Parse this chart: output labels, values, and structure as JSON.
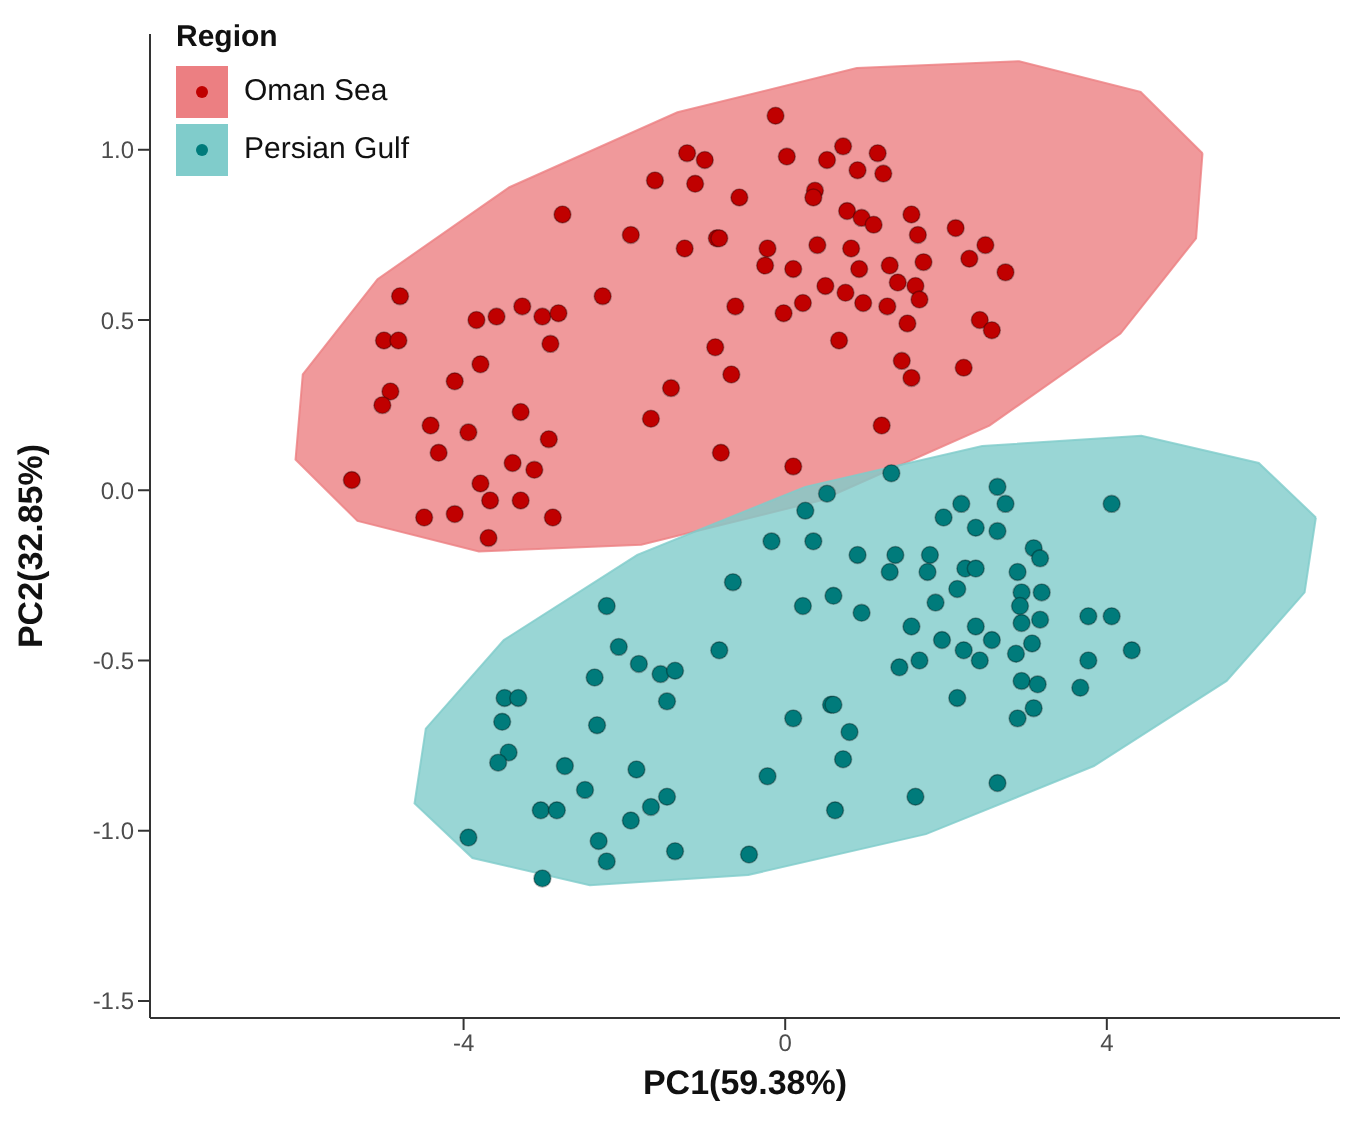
{
  "chart_data": {
    "type": "scatter",
    "xlabel": "PC1(59.38%)",
    "ylabel": "PC2(32.85%)",
    "legend_title": "Region",
    "legend": "top left",
    "grid": false,
    "xlim": [
      -7.9,
      6.9
    ],
    "xticks": [
      -4,
      0,
      4
    ],
    "ylim": [
      -1.55,
      1.34
    ],
    "yticks": [
      {
        "value": -1.5,
        "label": "-1.5"
      },
      {
        "value": -1,
        "label": "-1.0"
      },
      -0.5,
      {
        "value": 0,
        "label": "0.0"
      },
      0.5,
      {
        "value": 1,
        "label": "1.0"
      }
    ],
    "series": [
      {
        "type": "area",
        "color": "#ec7f82",
        "x": [
          5.19,
          5.11,
          4.17,
          2.54,
          0.44,
          -1.79,
          -3.81,
          -5.32,
          -6.09,
          -6.0,
          -5.07,
          -3.43,
          -1.34,
          0.89,
          2.91,
          4.42,
          5.19
        ],
        "values": [
          0.99,
          0.74,
          0.46,
          0.19,
          -0.03,
          -0.16,
          -0.18,
          -0.09,
          0.09,
          0.34,
          0.62,
          0.89,
          1.11,
          1.24,
          1.26,
          1.17,
          0.99
        ]
      },
      {
        "type": "area",
        "color": "#80cccb",
        "x": [
          6.6,
          6.46,
          5.49,
          3.84,
          1.75,
          -0.46,
          -2.43,
          -3.89,
          -4.61,
          -4.47,
          -3.5,
          -1.84,
          0.25,
          2.45,
          4.43,
          5.89,
          6.6
        ],
        "values": [
          -0.08,
          -0.3,
          -0.56,
          -0.81,
          -1.01,
          -1.13,
          -1.16,
          -1.08,
          -0.92,
          -0.7,
          -0.44,
          -0.19,
          0.01,
          0.13,
          0.16,
          0.08,
          -0.08
        ]
      },
      {
        "name": "Oman Sea",
        "marker": "circle",
        "color": "#c00000",
        "x": [
          -1.22,
          -1.0,
          -1.62,
          -1.12,
          -2.77,
          -1.92,
          -1.25,
          -0.85,
          -4.79,
          -2.27,
          -3.84,
          -3.59,
          -3.27,
          -3.02,
          -2.82,
          -4.99,
          -4.81,
          -2.92,
          -0.87,
          -3.79,
          -4.11,
          -4.91,
          -5.01,
          -1.42,
          -3.29,
          -1.67,
          -4.41,
          -3.94,
          -2.94,
          -4.31,
          -3.39,
          -3.12,
          -5.39,
          -3.79,
          -3.67,
          -3.29,
          -4.49,
          -4.11,
          -2.89,
          -3.69,
          -0.12,
          -0.57,
          0.02,
          0.52,
          0.72,
          0.9,
          1.15,
          1.22,
          0.37,
          0.35,
          0.77,
          0.95,
          1.1,
          1.57,
          1.65,
          2.12,
          2.49,
          2.29,
          2.74,
          -0.82,
          -0.22,
          -0.25,
          0.4,
          0.82,
          0.1,
          0.92,
          1.3,
          1.72,
          1.4,
          1.62,
          1.67,
          0.5,
          0.75,
          0.97,
          1.27,
          0.22,
          -0.02,
          -0.62,
          1.52,
          2.42,
          2.57,
          0.67,
          -0.67,
          1.45,
          1.57,
          2.22,
          1.2,
          -0.8,
          0.1
        ],
        "values": [
          0.99,
          0.97,
          0.91,
          0.9,
          0.81,
          0.75,
          0.71,
          0.74,
          0.57,
          0.57,
          0.5,
          0.51,
          0.54,
          0.51,
          0.52,
          0.44,
          0.44,
          0.43,
          0.42,
          0.37,
          0.32,
          0.29,
          0.25,
          0.3,
          0.23,
          0.21,
          0.19,
          0.17,
          0.15,
          0.11,
          0.08,
          0.06,
          0.03,
          0.02,
          -0.03,
          -0.03,
          -0.08,
          -0.07,
          -0.08,
          -0.14,
          1.1,
          0.86,
          0.98,
          0.97,
          1.01,
          0.94,
          0.99,
          0.93,
          0.88,
          0.86,
          0.82,
          0.8,
          0.78,
          0.81,
          0.75,
          0.77,
          0.72,
          0.68,
          0.64,
          0.74,
          0.71,
          0.66,
          0.72,
          0.71,
          0.65,
          0.65,
          0.66,
          0.67,
          0.61,
          0.6,
          0.56,
          0.6,
          0.58,
          0.55,
          0.54,
          0.55,
          0.52,
          0.54,
          0.49,
          0.5,
          0.47,
          0.44,
          0.34,
          0.38,
          0.33,
          0.36,
          0.19,
          0.11,
          0.07
        ]
      },
      {
        "name": "Persian Gulf",
        "marker": "circle",
        "color": "#007b7b",
        "x": [
          0.52,
          0.25,
          -0.17,
          0.35,
          -0.65,
          0.22,
          0.6,
          -2.22,
          -2.07,
          -1.82,
          -1.55,
          -1.37,
          -0.82,
          -2.37,
          -1.47,
          -3.49,
          -3.32,
          -3.52,
          -2.34,
          0.1,
          0.57,
          -3.44,
          -3.57,
          -2.74,
          -1.85,
          -0.22,
          -2.49,
          -3.04,
          -2.84,
          -1.67,
          -1.47,
          -1.92,
          0.62,
          -3.94,
          -2.32,
          -2.22,
          -1.37,
          -0.45,
          -3.02,
          1.32,
          2.64,
          2.74,
          2.19,
          1.97,
          2.37,
          2.64,
          4.06,
          0.9,
          1.37,
          1.3,
          1.8,
          1.77,
          2.24,
          2.37,
          3.09,
          3.17,
          2.89,
          2.14,
          2.94,
          3.19,
          2.92,
          0.95,
          1.87,
          2.94,
          3.17,
          2.37,
          1.57,
          3.77,
          4.06,
          1.95,
          2.57,
          3.07,
          2.22,
          2.87,
          2.42,
          1.67,
          1.42,
          3.77,
          4.31,
          2.94,
          3.14,
          3.67,
          2.14,
          3.09,
          2.89,
          0.6,
          0.8,
          0.72,
          2.64,
          1.62
        ],
        "values": [
          -0.01,
          -0.06,
          -0.15,
          -0.15,
          -0.27,
          -0.34,
          -0.31,
          -0.34,
          -0.46,
          -0.51,
          -0.54,
          -0.53,
          -0.47,
          -0.55,
          -0.62,
          -0.61,
          -0.61,
          -0.68,
          -0.69,
          -0.67,
          -0.63,
          -0.77,
          -0.8,
          -0.81,
          -0.82,
          -0.84,
          -0.88,
          -0.94,
          -0.94,
          -0.93,
          -0.9,
          -0.97,
          -0.94,
          -1.02,
          -1.03,
          -1.09,
          -1.06,
          -1.07,
          -1.14,
          0.05,
          0.01,
          -0.04,
          -0.04,
          -0.08,
          -0.11,
          -0.12,
          -0.04,
          -0.19,
          -0.19,
          -0.24,
          -0.19,
          -0.24,
          -0.23,
          -0.23,
          -0.17,
          -0.2,
          -0.24,
          -0.29,
          -0.3,
          -0.3,
          -0.34,
          -0.36,
          -0.33,
          -0.39,
          -0.38,
          -0.4,
          -0.4,
          -0.37,
          -0.37,
          -0.44,
          -0.44,
          -0.45,
          -0.47,
          -0.48,
          -0.5,
          -0.5,
          -0.52,
          -0.5,
          -0.47,
          -0.56,
          -0.57,
          -0.58,
          -0.61,
          -0.64,
          -0.67,
          -0.63,
          -0.71,
          -0.79,
          -0.86,
          -0.9
        ]
      }
    ]
  }
}
